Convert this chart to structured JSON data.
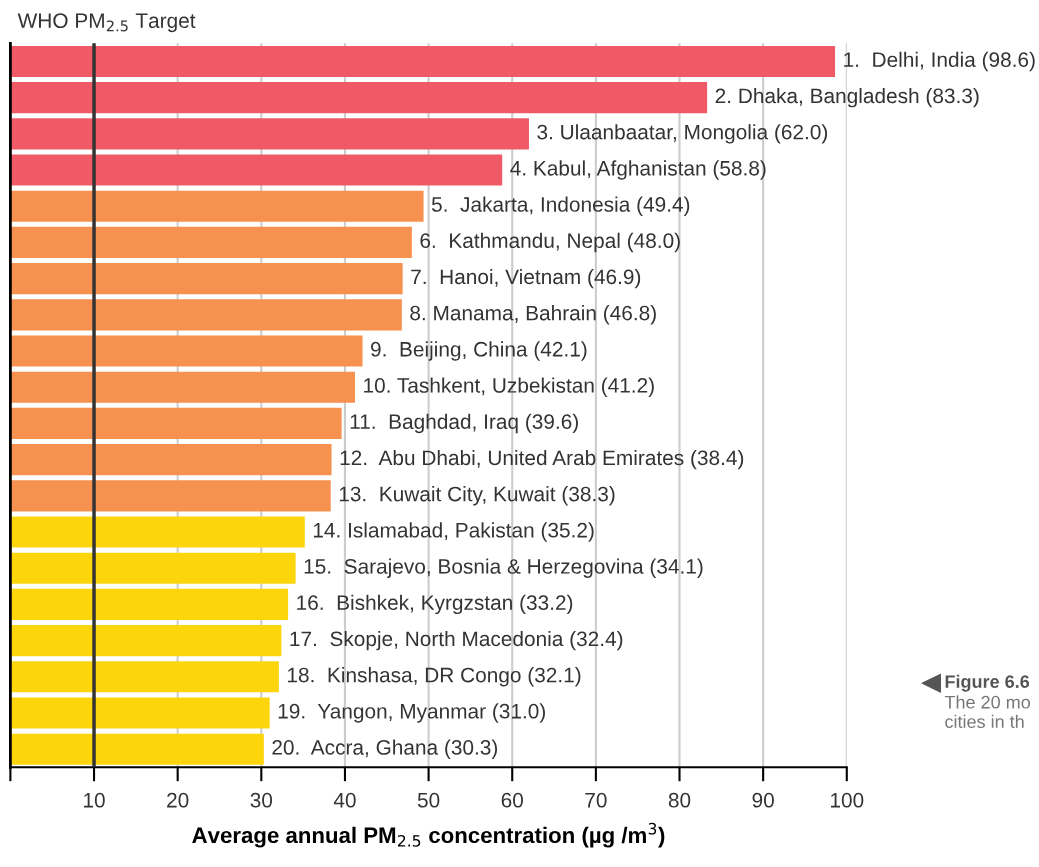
{
  "chart_data": {
    "type": "bar",
    "orientation": "horizontal",
    "categories": [
      "1.  Delhi, India",
      "2. Dhaka, Bangladesh",
      "3. Ulaanbaatar, Mongolia",
      "4. Kabul, Afghanistan",
      "5.  Jakarta, Indonesia",
      "6.  Kathmandu, Nepal",
      "7.  Hanoi, Vietnam",
      "8. Manama, Bahrain",
      "9.  Beijing, China",
      "10. Tashkent, Uzbekistan",
      "11.  Baghdad, Iraq",
      "12.  Abu Dhabi, United Arab Emirates",
      "13.  Kuwait City, Kuwait",
      "14. Islamabad, Pakistan",
      "15.  Sarajevo, Bosnia & Herzegovina",
      "16.  Bishkek, Kyrgzstan",
      "17.  Skopje, North Macedonia",
      "18.  Kinshasa, DR Congo",
      "19.  Yangon, Myanmar",
      "20.  Accra, Ghana"
    ],
    "values": [
      98.6,
      83.3,
      62.0,
      58.8,
      49.4,
      48.0,
      46.9,
      46.8,
      42.1,
      41.2,
      39.6,
      38.4,
      38.3,
      35.2,
      34.1,
      33.2,
      32.4,
      32.1,
      31.0,
      30.3
    ],
    "value_labels": [
      "(98.6)",
      "(83.3)",
      "(62.0)",
      "(58.8)",
      "(49.4)",
      "(48.0)",
      "(46.9)",
      "(46.8)",
      "(42.1)",
      "(41.2)",
      "(39.6)",
      "(38.4)",
      "(38.3)",
      "(35.2)",
      "(34.1)",
      "(33.2)",
      "(32.4)",
      "(32.1)",
      "(31.0)",
      "(30.3)"
    ],
    "colors": [
      "#f05a67",
      "#f05a67",
      "#f05a67",
      "#f05a67",
      "#f7914f",
      "#f7914f",
      "#f7914f",
      "#f7914f",
      "#f7914f",
      "#f7914f",
      "#f7914f",
      "#f7914f",
      "#f7914f",
      "#fcd50a",
      "#fcd50a",
      "#fcd50a",
      "#fcd50a",
      "#fcd50a",
      "#fcd50a",
      "#fcd50a"
    ],
    "xlabel": "Average annual PM$_{2.5}$ concentration (µg /m$^{3}$)",
    "xlim": [
      0,
      100
    ],
    "xticks": [
      {
        "value": 0,
        "label": null
      },
      10,
      20,
      30,
      40,
      50,
      60,
      70,
      80,
      90,
      100
    ],
    "grid": "x",
    "ref_lines": [
      {
        "axis": "x",
        "value": 10,
        "label": "WHO PM$_{2.5}$ Target",
        "color": "#333333"
      }
    ],
    "annotations": [
      "Figure 6.6",
      "The 20 mo\ncities in th"
    ]
  }
}
